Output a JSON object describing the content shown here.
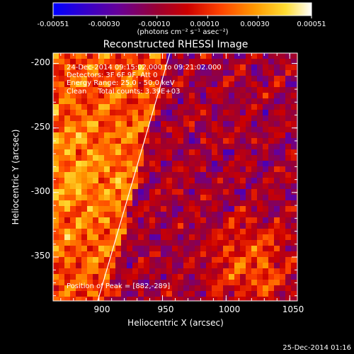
{
  "colorbar": {
    "tick_labels": [
      "-0.00051",
      "-0.00030",
      "-0.00010",
      "0.00010",
      "0.00030",
      "0.00051"
    ],
    "units": "(photons cm⁻² s⁻¹ asec⁻²)",
    "colors": [
      "#0000ff",
      "#3300cc",
      "#660099",
      "#990033",
      "#cc0000",
      "#ff4400",
      "#ff9900",
      "#ffdd33",
      "#ffffff"
    ]
  },
  "plot": {
    "title": "Reconstructed RHESSI Image",
    "x_axis_label": "Heliocentric X (arcsec)",
    "y_axis_label": "Heliocentric Y (arcsec)",
    "x_tick_labels": [
      "900",
      "950",
      "1000",
      "1050"
    ],
    "y_tick_labels": [
      "-200",
      "-250",
      "-300",
      "-350"
    ]
  },
  "annotations": {
    "time_range": "24-Dec-2014 09:15:02.000 to 09:21:02.000",
    "detectors": "Detectors: 3F 6F 9F, Att 0",
    "energy_range": "Energy Range: 25.0 - 50.0 keV",
    "clean_counts": "Clean     Total counts: 3.39E+03",
    "peak_position": "Position of Peak = [882,-289]"
  },
  "footer": {
    "timestamp": "25-Dec-2014 01:16"
  },
  "chart_data": {
    "type": "heatmap",
    "title": "Reconstructed RHESSI Image",
    "xlabel": "Heliocentric X (arcsec)",
    "ylabel": "Heliocentric Y (arcsec)",
    "xlim": [
      864,
      1056
    ],
    "ylim": [
      -384,
      -192
    ],
    "x_ticks": [
      900,
      950,
      1000,
      1050
    ],
    "y_ticks": [
      -200,
      -250,
      -300,
      -350
    ],
    "colorbar_range": [
      -0.00051,
      0.00051
    ],
    "colorbar_ticks": [
      -0.00051,
      -0.0003,
      -0.0001,
      0.0001,
      0.0003,
      0.00051
    ],
    "peak_position": [
      882,
      -289
    ],
    "limb_line": [
      [
        906,
        -384
      ],
      [
        955,
        -192
      ]
    ],
    "colormap": "blue-purple-red-yellow-white"
  }
}
